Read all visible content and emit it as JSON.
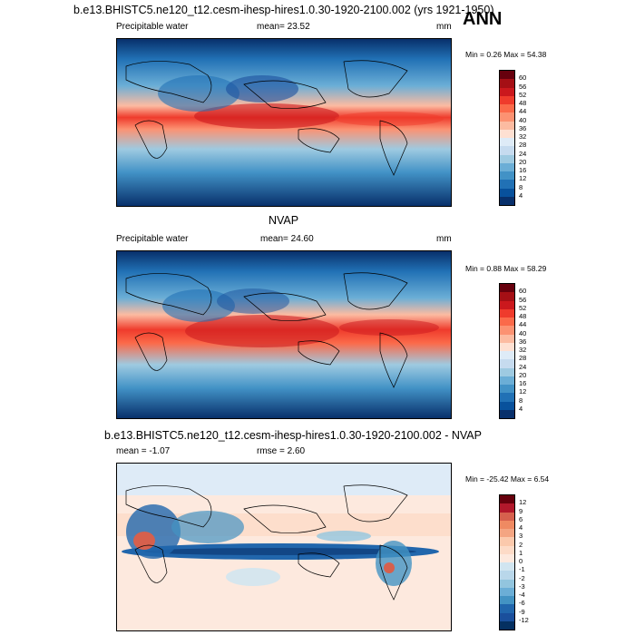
{
  "header": {
    "title": "b.e13.BHISTC5.ne120_t12.cesm-ihesp-hires1.0.30-1920-2100.002 (yrs 1921-1950)",
    "season": "ANN"
  },
  "panels": [
    {
      "id": "model",
      "title": "",
      "left_label": "Precipitable water",
      "mean_text": "mean=  23.52",
      "units": "mm",
      "minmax_text": "Min =   0.26 Max =  54.38",
      "colorbar": {
        "labels": [
          "60",
          "56",
          "52",
          "48",
          "44",
          "40",
          "36",
          "32",
          "28",
          "24",
          "20",
          "16",
          "12",
          "8",
          "4"
        ],
        "colors": [
          "#67000d",
          "#a50f15",
          "#cb181d",
          "#ef3b2c",
          "#fb6a4a",
          "#fc9272",
          "#fcbba1",
          "#fee0d2",
          "#deebf7",
          "#c6dbef",
          "#9ecae1",
          "#6baed6",
          "#4292c6",
          "#2171b5",
          "#08519c",
          "#08306b"
        ]
      }
    },
    {
      "id": "obs",
      "title": "NVAP",
      "left_label": "Precipitable water",
      "mean_text": "mean=  24.60",
      "units": "mm",
      "minmax_text": "Min =   0.88 Max =  58.29",
      "colorbar": {
        "labels": [
          "60",
          "56",
          "52",
          "48",
          "44",
          "40",
          "36",
          "32",
          "28",
          "24",
          "20",
          "16",
          "12",
          "8",
          "4"
        ],
        "colors": [
          "#67000d",
          "#a50f15",
          "#cb181d",
          "#ef3b2c",
          "#fb6a4a",
          "#fc9272",
          "#fcbba1",
          "#fee0d2",
          "#deebf7",
          "#c6dbef",
          "#9ecae1",
          "#6baed6",
          "#4292c6",
          "#2171b5",
          "#08519c",
          "#08306b"
        ]
      }
    },
    {
      "id": "diff",
      "title": "b.e13.BHISTC5.ne120_t12.cesm-ihesp-hires1.0.30-1920-2100.002 - NVAP",
      "left_label": "mean =  -1.07",
      "mean_text": "rmse =   2.60",
      "units": "",
      "minmax_text": "Min = -25.42 Max =   6.54",
      "colorbar": {
        "labels": [
          "12",
          "9",
          "6",
          "4",
          "3",
          "2",
          "1",
          "0",
          "-1",
          "-2",
          "-3",
          "-4",
          "-6",
          "-9",
          "-12"
        ],
        "colors": [
          "#67000d",
          "#b2182b",
          "#d6604d",
          "#ef8a62",
          "#f4a582",
          "#fbc9ac",
          "#fddbc7",
          "#fde9de",
          "#d1e5f0",
          "#b9d7ea",
          "#92c5de",
          "#6baed6",
          "#4393c3",
          "#2166ac",
          "#1a4f9c",
          "#053061"
        ]
      }
    }
  ]
}
